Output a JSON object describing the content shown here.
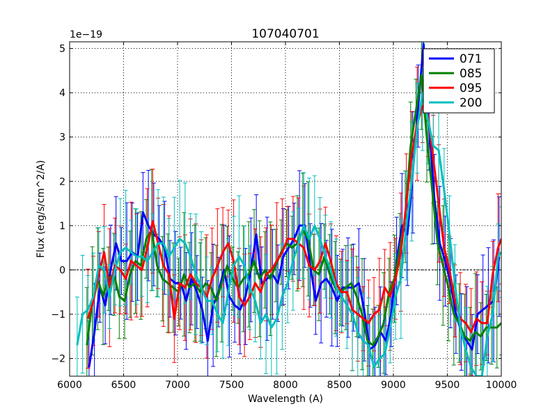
{
  "chart_data": {
    "type": "line",
    "title": "107040701",
    "xlabel": "Wavelength (A)",
    "ylabel": "Flux (erg/s/cm^2/A)",
    "offset_label": "1e−19",
    "xlim": [
      6000,
      10000
    ],
    "ylim": [
      -2.4,
      5.15
    ],
    "xticks": [
      6000,
      6500,
      7000,
      7500,
      8000,
      8500,
      9000,
      9500,
      10000
    ],
    "xtick_labels": [
      "6000",
      "6500",
      "7000",
      "7500",
      "8000",
      "8500",
      "9000",
      "9500",
      "10000"
    ],
    "yticks": [
      -2,
      -1,
      0,
      1,
      2,
      3,
      4,
      5
    ],
    "ytick_labels": [
      "−2",
      "−1",
      "0",
      "1",
      "2",
      "3",
      "4",
      "5"
    ],
    "grid": true,
    "legend_position": "top-right",
    "series": [
      {
        "name": "071",
        "color": "#0000ff",
        "x": [
          6180,
          6230,
          6280,
          6330,
          6380,
          6430,
          6480,
          6530,
          6580,
          6630,
          6680,
          6730,
          6780,
          6830,
          6880,
          6930,
          6980,
          7030,
          7080,
          7130,
          7180,
          7230,
          7280,
          7330,
          7380,
          7430,
          7480,
          7530,
          7580,
          7630,
          7680,
          7730,
          7780,
          7830,
          7880,
          7930,
          7980,
          8030,
          8080,
          8130,
          8180,
          8230,
          8280,
          8330,
          8380,
          8430,
          8480,
          8530,
          8580,
          8630,
          8680,
          8730,
          8780,
          8830,
          8880,
          8930,
          8980,
          9030,
          9080,
          9130,
          9180,
          9230,
          9280,
          9330,
          9380,
          9430,
          9480,
          9530,
          9580,
          9630,
          9680,
          9730,
          9780,
          9830,
          9880,
          9930,
          9980
        ],
        "y": [
          -2.2,
          -1.4,
          -0.4,
          -0.8,
          0.0,
          0.6,
          0.2,
          0.2,
          0.4,
          0.3,
          1.3,
          1.0,
          0.8,
          0.7,
          0.5,
          -0.2,
          -0.3,
          -0.3,
          -0.7,
          -0.2,
          -0.5,
          -0.9,
          -1.6,
          -0.8,
          -0.5,
          0.0,
          -0.6,
          -0.8,
          -0.9,
          -0.6,
          0.0,
          0.8,
          -0.3,
          -0.2,
          -0.1,
          -0.3,
          0.3,
          0.5,
          0.7,
          1.0,
          1.0,
          0.1,
          -0.7,
          -0.3,
          -0.2,
          -0.4,
          -0.7,
          -0.4,
          -0.4,
          -0.4,
          -0.3,
          -0.9,
          -1.8,
          -1.7,
          -1.4,
          -1.6,
          -1.0,
          0.2,
          1.0,
          0.8,
          2.2,
          3.7,
          5.1,
          3.3,
          1.6,
          0.6,
          0.2,
          -0.3,
          -1.0,
          -1.4,
          -1.6,
          -1.8,
          -1.0,
          -0.9,
          -0.8,
          -0.7,
          0.3
        ]
      },
      {
        "name": "085",
        "color": "#008000",
        "x": [
          6160,
          6210,
          6260,
          6310,
          6360,
          6410,
          6460,
          6510,
          6560,
          6610,
          6660,
          6710,
          6760,
          6810,
          6860,
          6910,
          6960,
          7010,
          7060,
          7110,
          7160,
          7210,
          7260,
          7310,
          7360,
          7410,
          7460,
          7510,
          7560,
          7610,
          7660,
          7710,
          7760,
          7810,
          7860,
          7910,
          7960,
          8010,
          8060,
          8110,
          8160,
          8210,
          8260,
          8310,
          8360,
          8410,
          8460,
          8510,
          8560,
          8610,
          8660,
          8710,
          8760,
          8810,
          8860,
          8910,
          8960,
          9010,
          9060,
          9110,
          9160,
          9210,
          9260,
          9310,
          9360,
          9410,
          9460,
          9510,
          9560,
          9610,
          9660,
          9710,
          9760,
          9810,
          9860,
          9910,
          9960,
          10000
        ],
        "y": [
          -1.7,
          -0.7,
          -0.2,
          -0.6,
          -0.2,
          -0.1,
          -0.6,
          -0.7,
          -0.1,
          0.2,
          0.1,
          0.7,
          0.9,
          0.1,
          -0.2,
          -0.3,
          -0.4,
          -0.5,
          -0.1,
          -0.4,
          -0.3,
          -0.5,
          -0.3,
          -0.4,
          -0.7,
          -0.3,
          0.1,
          -0.2,
          -0.4,
          -0.2,
          -0.1,
          0.2,
          -0.2,
          0.0,
          -0.2,
          0.1,
          0.4,
          0.6,
          0.5,
          0.6,
          0.9,
          0.7,
          0.0,
          -0.1,
          0.3,
          -0.1,
          -0.4,
          -0.5,
          -0.4,
          -0.3,
          -0.6,
          -1.0,
          -1.6,
          -1.7,
          -1.5,
          -1.2,
          -0.5,
          -0.2,
          0.5,
          1.2,
          2.8,
          3.6,
          4.4,
          3.0,
          1.8,
          0.6,
          0.1,
          -0.4,
          -1.0,
          -1.2,
          -1.5,
          -1.6,
          -1.4,
          -1.5,
          -1.3,
          -1.3,
          -1.3,
          -1.2
        ]
      },
      {
        "name": "095",
        "color": "#ff0000",
        "x": [
          6170,
          6220,
          6270,
          6320,
          6370,
          6420,
          6470,
          6520,
          6570,
          6620,
          6670,
          6720,
          6770,
          6820,
          6870,
          6920,
          6970,
          7020,
          7070,
          7120,
          7170,
          7220,
          7270,
          7320,
          7370,
          7420,
          7470,
          7520,
          7570,
          7620,
          7670,
          7720,
          7770,
          7820,
          7870,
          7920,
          7970,
          8020,
          8070,
          8120,
          8170,
          8220,
          8270,
          8320,
          8370,
          8420,
          8470,
          8520,
          8570,
          8620,
          8670,
          8720,
          8770,
          8820,
          8870,
          8920,
          8970,
          9020,
          9070,
          9120,
          9170,
          9220,
          9270,
          9320,
          9370,
          9420,
          9470,
          9520,
          9570,
          9620,
          9670,
          9720,
          9770,
          9820,
          9870,
          9920,
          9970,
          10000
        ],
        "y": [
          -1.1,
          -0.7,
          -0.1,
          0.4,
          -0.4,
          0.1,
          0.0,
          -0.2,
          0.2,
          0.1,
          0.0,
          0.5,
          1.1,
          0.6,
          0.1,
          -0.1,
          -1.1,
          -0.3,
          -0.4,
          -0.1,
          -0.3,
          -0.4,
          -0.6,
          -0.2,
          0.1,
          0.4,
          0.6,
          0.2,
          -0.6,
          -0.8,
          -0.6,
          -0.3,
          -0.5,
          -0.1,
          0.0,
          0.2,
          0.4,
          0.7,
          0.7,
          0.6,
          0.5,
          0.1,
          0.0,
          0.2,
          0.6,
          0.2,
          -0.3,
          -0.5,
          -0.5,
          -0.9,
          -1.0,
          -1.1,
          -1.2,
          -1.0,
          -0.9,
          -0.4,
          -0.6,
          -0.2,
          0.4,
          1.5,
          2.6,
          3.3,
          3.7,
          3.5,
          2.5,
          1.5,
          0.5,
          0.0,
          -0.7,
          -1.1,
          -1.2,
          -1.4,
          -1.1,
          -1.2,
          -1.2,
          -0.1,
          0.5,
          0.7
        ]
      },
      {
        "name": "200",
        "color": "#00bfbf",
        "x": [
          6070,
          6120,
          6170,
          6220,
          6270,
          6320,
          6370,
          6420,
          6470,
          6520,
          6570,
          6620,
          6670,
          6720,
          6770,
          6820,
          6870,
          6920,
          6970,
          7020,
          7070,
          7120,
          7170,
          7220,
          7270,
          7320,
          7370,
          7420,
          7470,
          7520,
          7570,
          7620,
          7670,
          7720,
          7770,
          7820,
          7870,
          7920,
          7970,
          8020,
          8070,
          8120,
          8170,
          8220,
          8270,
          8320,
          8370,
          8420,
          8470,
          8520,
          8570,
          8620,
          8670,
          8720,
          8770,
          8820,
          8870,
          8920,
          8970,
          9020,
          9070,
          9120,
          9170,
          9220,
          9270,
          9320,
          9370,
          9420,
          9470,
          9520,
          9570,
          9620,
          9670,
          9720,
          9770,
          9820,
          9870,
          9920,
          9970,
          10000
        ],
        "y": [
          -1.7,
          -1.0,
          -0.9,
          -0.6,
          0.1,
          0.0,
          -0.6,
          0.0,
          0.4,
          0.5,
          0.4,
          0.3,
          0.3,
          0.2,
          0.4,
          0.6,
          0.6,
          0.3,
          0.5,
          0.7,
          0.6,
          0.3,
          -0.1,
          -0.4,
          -0.7,
          -0.7,
          -1.0,
          -1.2,
          -0.5,
          0.1,
          0.3,
          0.1,
          -0.4,
          -0.7,
          -1.2,
          -1.0,
          -1.3,
          -1.1,
          -0.6,
          -0.3,
          0.2,
          0.6,
          1.0,
          0.7,
          1.0,
          0.7,
          0.3,
          0.0,
          -0.4,
          -0.6,
          -0.8,
          -1.0,
          -1.4,
          -1.6,
          -1.7,
          -2.2,
          -2.0,
          -1.9,
          -1.3,
          -0.6,
          -0.2,
          1.0,
          2.0,
          3.2,
          4.0,
          3.4,
          2.8,
          2.7,
          1.8,
          0.8,
          -0.3,
          -1.3,
          -1.8,
          -2.2,
          -2.4,
          -2.4,
          -1.5,
          -1.0,
          0.3,
          0.4
        ]
      }
    ]
  }
}
